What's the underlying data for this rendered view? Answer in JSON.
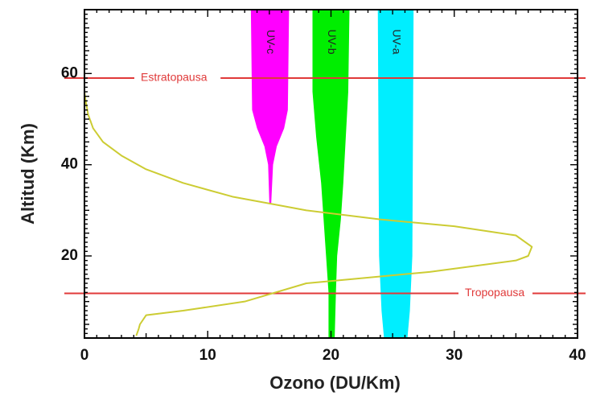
{
  "chart_data": {
    "type": "line",
    "title": "",
    "xlabel": "Ozono (DU/Km)",
    "ylabel": "Altitud (Km)",
    "xlim": [
      0,
      40
    ],
    "ylim": [
      2,
      74
    ],
    "xticks": [
      0,
      10,
      20,
      30,
      40
    ],
    "yticks": [
      20,
      40,
      60
    ],
    "xtick_labels": [
      "0",
      "10",
      "20",
      "30",
      "40"
    ],
    "ytick_labels": [
      "20",
      "40",
      "60"
    ],
    "grid": false,
    "series": [
      {
        "name": "",
        "color": "#cccc33",
        "x": [
          4.2,
          4.4,
          4.5,
          5,
          8,
          13,
          18,
          22,
          28,
          35,
          36,
          36.3,
          35,
          30,
          24,
          18,
          12,
          8,
          5,
          3,
          1.5,
          0.7,
          0.3,
          0.1,
          0
        ],
        "y": [
          2.5,
          4,
          5,
          7,
          8,
          10,
          14,
          15,
          16.5,
          19,
          20,
          22,
          24.5,
          26.5,
          28,
          30,
          33,
          36,
          39,
          42,
          45,
          48,
          51,
          54,
          56
        ]
      }
    ],
    "uv_bands": [
      {
        "label": "UV-c",
        "color": "#ff00ff",
        "profile": [
          {
            "y": 31.5,
            "x0": 15.0,
            "x1": 15.15
          },
          {
            "y": 40,
            "x0": 14.9,
            "x1": 15.3
          },
          {
            "y": 44,
            "x0": 14.6,
            "x1": 15.6
          },
          {
            "y": 48,
            "x0": 14.0,
            "x1": 16.2
          },
          {
            "y": 52,
            "x0": 13.6,
            "x1": 16.5
          },
          {
            "y": 74,
            "x0": 13.5,
            "x1": 16.6
          }
        ]
      },
      {
        "label": "UV-b",
        "color": "#00ee00",
        "profile": [
          {
            "y": 2,
            "x0": 19.8,
            "x1": 20.3
          },
          {
            "y": 12,
            "x0": 19.8,
            "x1": 20.4
          },
          {
            "y": 20,
            "x0": 19.6,
            "x1": 20.5
          },
          {
            "y": 28,
            "x0": 19.4,
            "x1": 20.8
          },
          {
            "y": 36,
            "x0": 19.2,
            "x1": 21.0
          },
          {
            "y": 46,
            "x0": 18.8,
            "x1": 21.2
          },
          {
            "y": 56,
            "x0": 18.5,
            "x1": 21.4
          },
          {
            "y": 74,
            "x0": 18.5,
            "x1": 21.5
          }
        ]
      },
      {
        "label": "UV-a",
        "color": "#00eeff",
        "profile": [
          {
            "y": 2,
            "x0": 24.3,
            "x1": 26.2
          },
          {
            "y": 8,
            "x0": 24.1,
            "x1": 26.4
          },
          {
            "y": 20,
            "x0": 23.9,
            "x1": 26.6
          },
          {
            "y": 74,
            "x0": 23.8,
            "x1": 26.7
          }
        ]
      }
    ],
    "annotations": [
      {
        "label": "Estratopausa",
        "y": 59,
        "color": "#e03a3a",
        "label_position": "left"
      },
      {
        "label": "Tropopausa",
        "y": 11.8,
        "color": "#e03a3a",
        "label_position": "right"
      }
    ]
  }
}
